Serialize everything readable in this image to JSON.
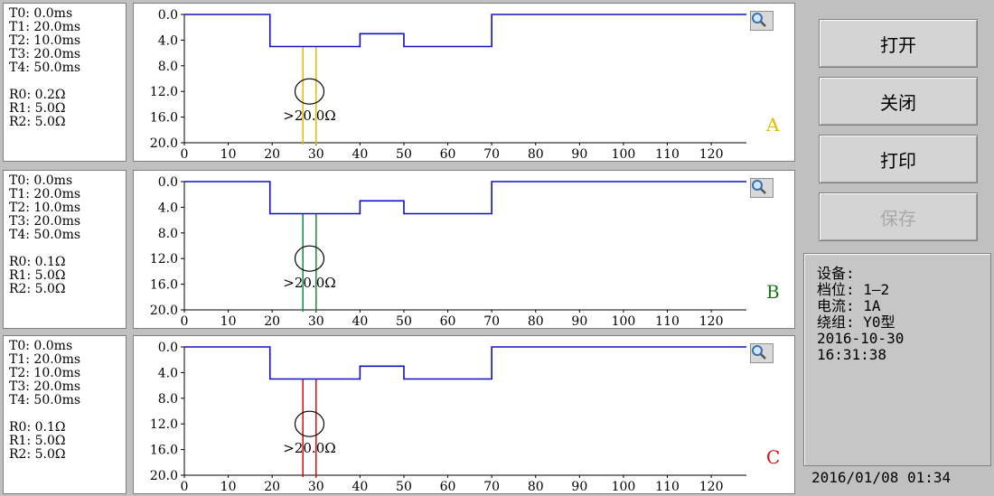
{
  "panels": [
    {
      "phase": "A",
      "phase_color": "#e8b800",
      "params": [
        "T0: 0.0ms",
        "T1: 20.0ms",
        "T2: 10.0ms",
        "T3: 20.0ms",
        "T4: 50.0ms",
        "R0: 0.2Ω",
        "R1: 5.0Ω",
        "R2: 5.0Ω"
      ],
      "annotation": ">20.0Ω",
      "series": [
        {
          "name": "",
          "color": "#1010c0",
          "x": [
            0,
            19.5,
            19.5,
            40,
            40,
            50,
            50,
            70,
            70,
            128
          ],
          "y": [
            0,
            0,
            5,
            5,
            3,
            3,
            5,
            5,
            0,
            0
          ]
        }
      ],
      "markers": {
        "color": "#e8b800",
        "x": [
          27,
          30
        ]
      }
    },
    {
      "phase": "B",
      "phase_color": "#1a7a1a",
      "params": [
        "T0: 0.0ms",
        "T1: 20.0ms",
        "T2: 10.0ms",
        "T3: 20.0ms",
        "T4: 50.0ms",
        "R0: 0.1Ω",
        "R1: 5.0Ω",
        "R2: 5.0Ω"
      ],
      "annotation": ">20.0Ω",
      "series": [
        {
          "name": "",
          "color": "#1010c0",
          "x": [
            0,
            19.5,
            19.5,
            40,
            40,
            50,
            50,
            70,
            70,
            128
          ],
          "y": [
            0,
            0,
            5,
            5,
            3,
            3,
            5,
            5,
            0,
            0
          ]
        }
      ],
      "markers": {
        "color": "#1a8a3a",
        "x": [
          27,
          30
        ]
      }
    },
    {
      "phase": "C",
      "phase_color": "#d01010",
      "params": [
        "T0: 0.0ms",
        "T1: 20.0ms",
        "T2: 10.0ms",
        "T3: 20.0ms",
        "T4: 50.0ms",
        "R0: 0.1Ω",
        "R1: 5.0Ω",
        "R2: 5.0Ω"
      ],
      "annotation": ">20.0Ω",
      "series": [
        {
          "name": "",
          "color": "#1010c0",
          "x": [
            0,
            19.5,
            19.5,
            40,
            40,
            50,
            50,
            70,
            70,
            128
          ],
          "y": [
            0,
            0,
            5,
            5,
            3,
            3,
            5,
            5,
            0,
            0
          ]
        }
      ],
      "markers": {
        "color": "#d01010",
        "x": [
          27,
          30
        ]
      }
    }
  ],
  "chart_data": [
    {
      "type": "line",
      "title": "",
      "xlabel": "",
      "ylabel": "",
      "xlim": [
        0,
        128
      ],
      "ylim": [
        20,
        0
      ],
      "x_ticks": [
        "0",
        "10",
        "20",
        "30",
        "40",
        "50",
        "60",
        "70",
        "80",
        "90",
        "100",
        "110",
        "120"
      ],
      "y_ticks": [
        "0.0",
        "4.0",
        "8.0",
        "12.0",
        "16.0",
        "20.0"
      ],
      "series": [
        {
          "x": [
            0,
            19.5,
            19.5,
            40,
            40,
            50,
            50,
            70,
            70,
            128
          ],
          "y": [
            0,
            0,
            5,
            5,
            3,
            3,
            5,
            5,
            0,
            0
          ]
        }
      ]
    },
    {
      "type": "line",
      "title": "",
      "xlabel": "",
      "ylabel": "",
      "xlim": [
        0,
        128
      ],
      "ylim": [
        20,
        0
      ],
      "x_ticks": [
        "0",
        "10",
        "20",
        "30",
        "40",
        "50",
        "60",
        "70",
        "80",
        "90",
        "100",
        "110",
        "120"
      ],
      "y_ticks": [
        "0.0",
        "4.0",
        "8.0",
        "12.0",
        "16.0",
        "20.0"
      ],
      "series": [
        {
          "x": [
            0,
            19.5,
            19.5,
            40,
            40,
            50,
            50,
            70,
            70,
            128
          ],
          "y": [
            0,
            0,
            5,
            5,
            3,
            3,
            5,
            5,
            0,
            0
          ]
        }
      ]
    },
    {
      "type": "line",
      "title": "",
      "xlabel": "",
      "ylabel": "",
      "xlim": [
        0,
        128
      ],
      "ylim": [
        20,
        0
      ],
      "x_ticks": [
        "0",
        "10",
        "20",
        "30",
        "40",
        "50",
        "60",
        "70",
        "80",
        "90",
        "100",
        "110",
        "120"
      ],
      "y_ticks": [
        "0.0",
        "4.0",
        "8.0",
        "12.0",
        "16.0",
        "20.0"
      ],
      "series": [
        {
          "x": [
            0,
            19.5,
            19.5,
            40,
            40,
            50,
            50,
            70,
            70,
            128
          ],
          "y": [
            0,
            0,
            5,
            5,
            3,
            3,
            5,
            5,
            0,
            0
          ]
        }
      ]
    }
  ],
  "buttons": {
    "open": "打开",
    "close": "关闭",
    "print": "打印",
    "save": "保存"
  },
  "info": {
    "lines": [
      "设备:",
      "档位: 1—2",
      "电流: 1A",
      "绕组: Y0型",
      "2016-10-30",
      "16:31:38"
    ]
  },
  "clock": "2016/01/08 01:34",
  "icons": {
    "zoom": "magnifier-icon"
  }
}
